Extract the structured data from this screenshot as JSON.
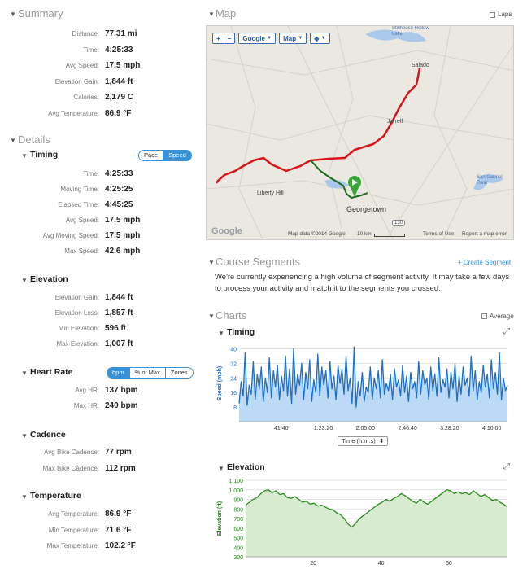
{
  "summary": {
    "title": "Summary",
    "rows": [
      {
        "label": "Distance:",
        "value": "77.31 mi"
      },
      {
        "label": "Time:",
        "value": "4:25:33"
      },
      {
        "label": "Avg Speed:",
        "value": "17.5 mph"
      },
      {
        "label": "Elevation Gain:",
        "value": "1,844 ft"
      },
      {
        "label": "Calories:",
        "value": "2,179 C"
      },
      {
        "label": "Avg Temperature:",
        "value": "86.9 °F"
      }
    ]
  },
  "details": {
    "title": "Details",
    "timing": {
      "title": "Timing",
      "toggle": [
        "Pace",
        "Speed"
      ],
      "rows": [
        {
          "label": "Time:",
          "value": "4:25:33"
        },
        {
          "label": "Moving Time:",
          "value": "4:25:25"
        },
        {
          "label": "Elapsed Time:",
          "value": "4:45:25"
        },
        {
          "label": "Avg Speed:",
          "value": "17.5 mph"
        },
        {
          "label": "Avg Moving Speed:",
          "value": "17.5 mph"
        },
        {
          "label": "Max Speed:",
          "value": "42.6 mph"
        }
      ]
    },
    "elevation": {
      "title": "Elevation",
      "rows": [
        {
          "label": "Elevation Gain:",
          "value": "1,844 ft"
        },
        {
          "label": "Elevation Loss:",
          "value": "1,857 ft"
        },
        {
          "label": "Min Elevation:",
          "value": "596 ft"
        },
        {
          "label": "Max Elevation:",
          "value": "1,007 ft"
        }
      ]
    },
    "heart_rate": {
      "title": "Heart Rate",
      "toggle": [
        "bpm",
        "% of Max",
        "Zones"
      ],
      "rows": [
        {
          "label": "Avg HR:",
          "value": "137 bpm"
        },
        {
          "label": "Max HR:",
          "value": "240 bpm"
        }
      ]
    },
    "cadence": {
      "title": "Cadence",
      "rows": [
        {
          "label": "Avg Bike Cadence:",
          "value": "77 rpm"
        },
        {
          "label": "Max Bike Cadence:",
          "value": "112 rpm"
        }
      ]
    },
    "temperature": {
      "title": "Temperature",
      "rows": [
        {
          "label": "Avg Temperature:",
          "value": "86.9 °F"
        },
        {
          "label": "Min Temperature:",
          "value": "71.6 °F"
        },
        {
          "label": "Max Temperature:",
          "value": "102.2 °F"
        }
      ]
    }
  },
  "map": {
    "title": "Map",
    "laps_label": "Laps",
    "controls": {
      "zoom_in": "+",
      "zoom_out": "−",
      "provider": "Google",
      "type": "Map"
    },
    "places": [
      "Salado",
      "Jarrell",
      "Liberty Hill",
      "Georgetown",
      "Stillhouse Hollow Lake",
      "San Gabriel River",
      "130"
    ],
    "footer": {
      "data": "Map data ©2014 Google",
      "scale": "10 km",
      "terms": "Terms of Use",
      "report": "Report a map error",
      "logo": "Google"
    }
  },
  "segments": {
    "title": "Course Segments",
    "link": "+ Create Segment",
    "message": "We're currently experiencing a high volume of segment activity. It may take a few days to process your activity and match it to the segments you crossed."
  },
  "charts": {
    "title": "Charts",
    "average_label": "Average",
    "x_selector": "Time (h:m:s)",
    "colors": {
      "speed_line": "#1a6fd0",
      "speed_fill": "#bcd9f5",
      "elev_line": "#2b8a1f",
      "elev_fill": "#d6ebcf"
    }
  },
  "chart_data": [
    {
      "type": "area",
      "title": "Timing",
      "ylabel": "Speed (mph)",
      "xlabel": "Time (h:m:s)",
      "x_ticks": [
        "41:40",
        "1:23:20",
        "2:05:00",
        "2:46:40",
        "3:28:20",
        "4:10:00"
      ],
      "x_tick_values": [
        2500,
        5000,
        7500,
        10000,
        12500,
        15000
      ],
      "y_ticks": [
        8,
        16,
        24,
        32,
        40
      ],
      "ylim": [
        0,
        42
      ],
      "xlim": [
        0,
        15933
      ],
      "series": [
        {
          "values": [
            10,
            22,
            14,
            38,
            9,
            20,
            15,
            33,
            12,
            26,
            18,
            30,
            11,
            24,
            16,
            35,
            13,
            28,
            19,
            31,
            12,
            25,
            17,
            36,
            14,
            29,
            10,
            40,
            15,
            26,
            20,
            32,
            12,
            27,
            18,
            34,
            11,
            23,
            16,
            37,
            14,
            30,
            20,
            28,
            13,
            33,
            18,
            25,
            12,
            31,
            21,
            29,
            15,
            36,
            17,
            24,
            10,
            41,
            8,
            22,
            14,
            27,
            11,
            19,
            16,
            30,
            12,
            24,
            18,
            28,
            13,
            34,
            15,
            21,
            17,
            26,
            12,
            29,
            19,
            23,
            14,
            31,
            16,
            25,
            11,
            27,
            18,
            22,
            13,
            33,
            15,
            28,
            20,
            24,
            12,
            30,
            17,
            26,
            14,
            35,
            16,
            23,
            19,
            29,
            13,
            27,
            18,
            32,
            11,
            25,
            15,
            30,
            20,
            24,
            14,
            36,
            17,
            28,
            12,
            22,
            16,
            31,
            19,
            26,
            13,
            34,
            18,
            27,
            15,
            38,
            12,
            24,
            17,
            20
          ]
        }
      ]
    },
    {
      "type": "area",
      "title": "Elevation",
      "ylabel": "Elevation (ft)",
      "x_ticks": [
        "20",
        "40",
        "60"
      ],
      "x_tick_values": [
        20,
        40,
        60
      ],
      "y_ticks": [
        300,
        400,
        500,
        600,
        700,
        800,
        900,
        1000,
        1100
      ],
      "y_tick_labels": [
        "300",
        "400",
        "500",
        "600",
        "700",
        "800",
        "900",
        "1,000",
        "1,100"
      ],
      "ylim": [
        300,
        1100
      ],
      "xlim": [
        0,
        77.31
      ],
      "series": [
        {
          "values": [
            840,
            870,
            900,
            920,
            960,
            990,
            1000,
            970,
            990,
            950,
            960,
            920,
            910,
            930,
            900,
            870,
            880,
            850,
            860,
            830,
            840,
            820,
            800,
            790,
            760,
            740,
            700,
            640,
            610,
            650,
            700,
            730,
            760,
            790,
            820,
            850,
            870,
            900,
            880,
            910,
            930,
            960,
            940,
            910,
            880,
            860,
            900,
            870,
            850,
            880,
            910,
            940,
            970,
            1000,
            990,
            960,
            980,
            960,
            970,
            950,
            990,
            960,
            930,
            950,
            920,
            890,
            900,
            870,
            850,
            820
          ]
        }
      ]
    }
  ]
}
